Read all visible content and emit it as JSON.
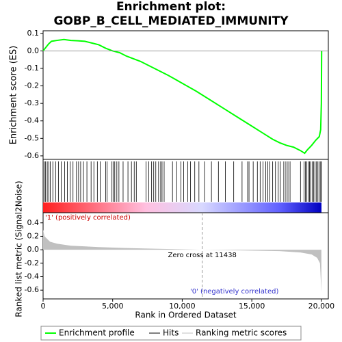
{
  "chart_data": [
    {
      "type": "line",
      "title": "Enrichment plot: GOBP_B_CELL_MEDIATED_IMMUNITY",
      "y_label": "Enrichment score (ES)",
      "xlim": [
        0,
        20500
      ],
      "ylim": [
        -0.62,
        0.115
      ],
      "yticks": [
        0.1,
        {
          "value": 0,
          "label": "0.0"
        },
        -0.1,
        -0.2,
        -0.3,
        -0.4,
        -0.5,
        -0.6
      ],
      "series": [
        {
          "name": "Enrichment profile",
          "color": "#00ff00",
          "x": [
            0,
            200,
            400,
            600,
            1000,
            1500,
            2000,
            2500,
            3000,
            3500,
            4000,
            4500,
            5000,
            5500,
            6000,
            7000,
            8000,
            9000,
            10000,
            11000,
            12000,
            13000,
            14000,
            15000,
            16000,
            16500,
            17000,
            17500,
            18000,
            18500,
            18800,
            19000,
            19300,
            19600,
            19850,
            19950,
            20000,
            20020
          ],
          "values": [
            0,
            0.02,
            0.04,
            0.055,
            0.06,
            0.065,
            0.06,
            0.058,
            0.055,
            0.045,
            0.035,
            0.015,
            0,
            -0.01,
            -0.03,
            -0.06,
            -0.1,
            -0.14,
            -0.185,
            -0.23,
            -0.28,
            -0.33,
            -0.38,
            -0.43,
            -0.48,
            -0.505,
            -0.525,
            -0.54,
            -0.55,
            -0.57,
            -0.585,
            -0.565,
            -0.54,
            -0.51,
            -0.49,
            -0.45,
            -0.3,
            0
          ]
        }
      ]
    },
    {
      "type": "rug",
      "name": "Hits",
      "color": "#000000",
      "xlim": [
        0,
        20500
      ],
      "x": [
        80,
        180,
        300,
        420,
        520,
        700,
        900,
        1100,
        1300,
        1550,
        1750,
        1950,
        2150,
        2400,
        2550,
        2700,
        2900,
        3150,
        3450,
        3650,
        3900,
        4100,
        4500,
        4600,
        4950,
        5050,
        5150,
        5300,
        5450,
        5750,
        6100,
        6350,
        6550,
        6700,
        7400,
        7600,
        7800,
        7950,
        8100,
        8300,
        8450,
        8550,
        8700,
        9300,
        9600,
        9900,
        10100,
        10400,
        10600,
        10900,
        11200,
        11600,
        12100,
        12600,
        13100,
        13700,
        14300,
        14700,
        14800,
        15100,
        15400,
        15600,
        15800,
        16000,
        16150,
        16300,
        16500,
        16700,
        16900,
        17050,
        17300,
        17450,
        17600,
        17750,
        18500,
        18750,
        18850,
        18950,
        19050,
        19150,
        19250,
        19350,
        19450,
        19550,
        19650,
        19750,
        19850,
        19950,
        20000
      ]
    },
    {
      "type": "area",
      "name": "Ranking metric scores",
      "color": "#c0c0c0",
      "y_label": "Ranked list metric (Signal2Noise)",
      "x_label": "Rank in Ordered Dataset",
      "pos_label": "'1' (positively correlated)",
      "neg_label": "'0' (negatively correlated)",
      "annotation": "Zero cross at 11438",
      "zero_cross": 11438,
      "xlim": [
        0,
        20500
      ],
      "ylim": [
        -0.73,
        0.55
      ],
      "xticks": [
        0,
        {
          "value": 5000,
          "label": "5,000"
        },
        {
          "value": 10000,
          "label": "10,000"
        },
        {
          "value": 15000,
          "label": "15,000"
        },
        {
          "value": 20000,
          "label": "20,000"
        }
      ],
      "yticks": [
        0.4,
        0.2,
        {
          "value": 0,
          "label": "0.0"
        },
        -0.2,
        -0.4,
        -0.6
      ],
      "x": [
        0,
        100,
        500,
        1000,
        2000,
        4000,
        6000,
        8000,
        10000,
        11438,
        13000,
        15000,
        17000,
        18500,
        19300,
        19700,
        19900,
        20000
      ],
      "values": [
        0.3,
        0.2,
        0.12,
        0.09,
        0.06,
        0.04,
        0.025,
        0.015,
        0.006,
        0,
        -0.005,
        -0.012,
        -0.02,
        -0.04,
        -0.07,
        -0.12,
        -0.2,
        -0.63
      ]
    }
  ]
}
